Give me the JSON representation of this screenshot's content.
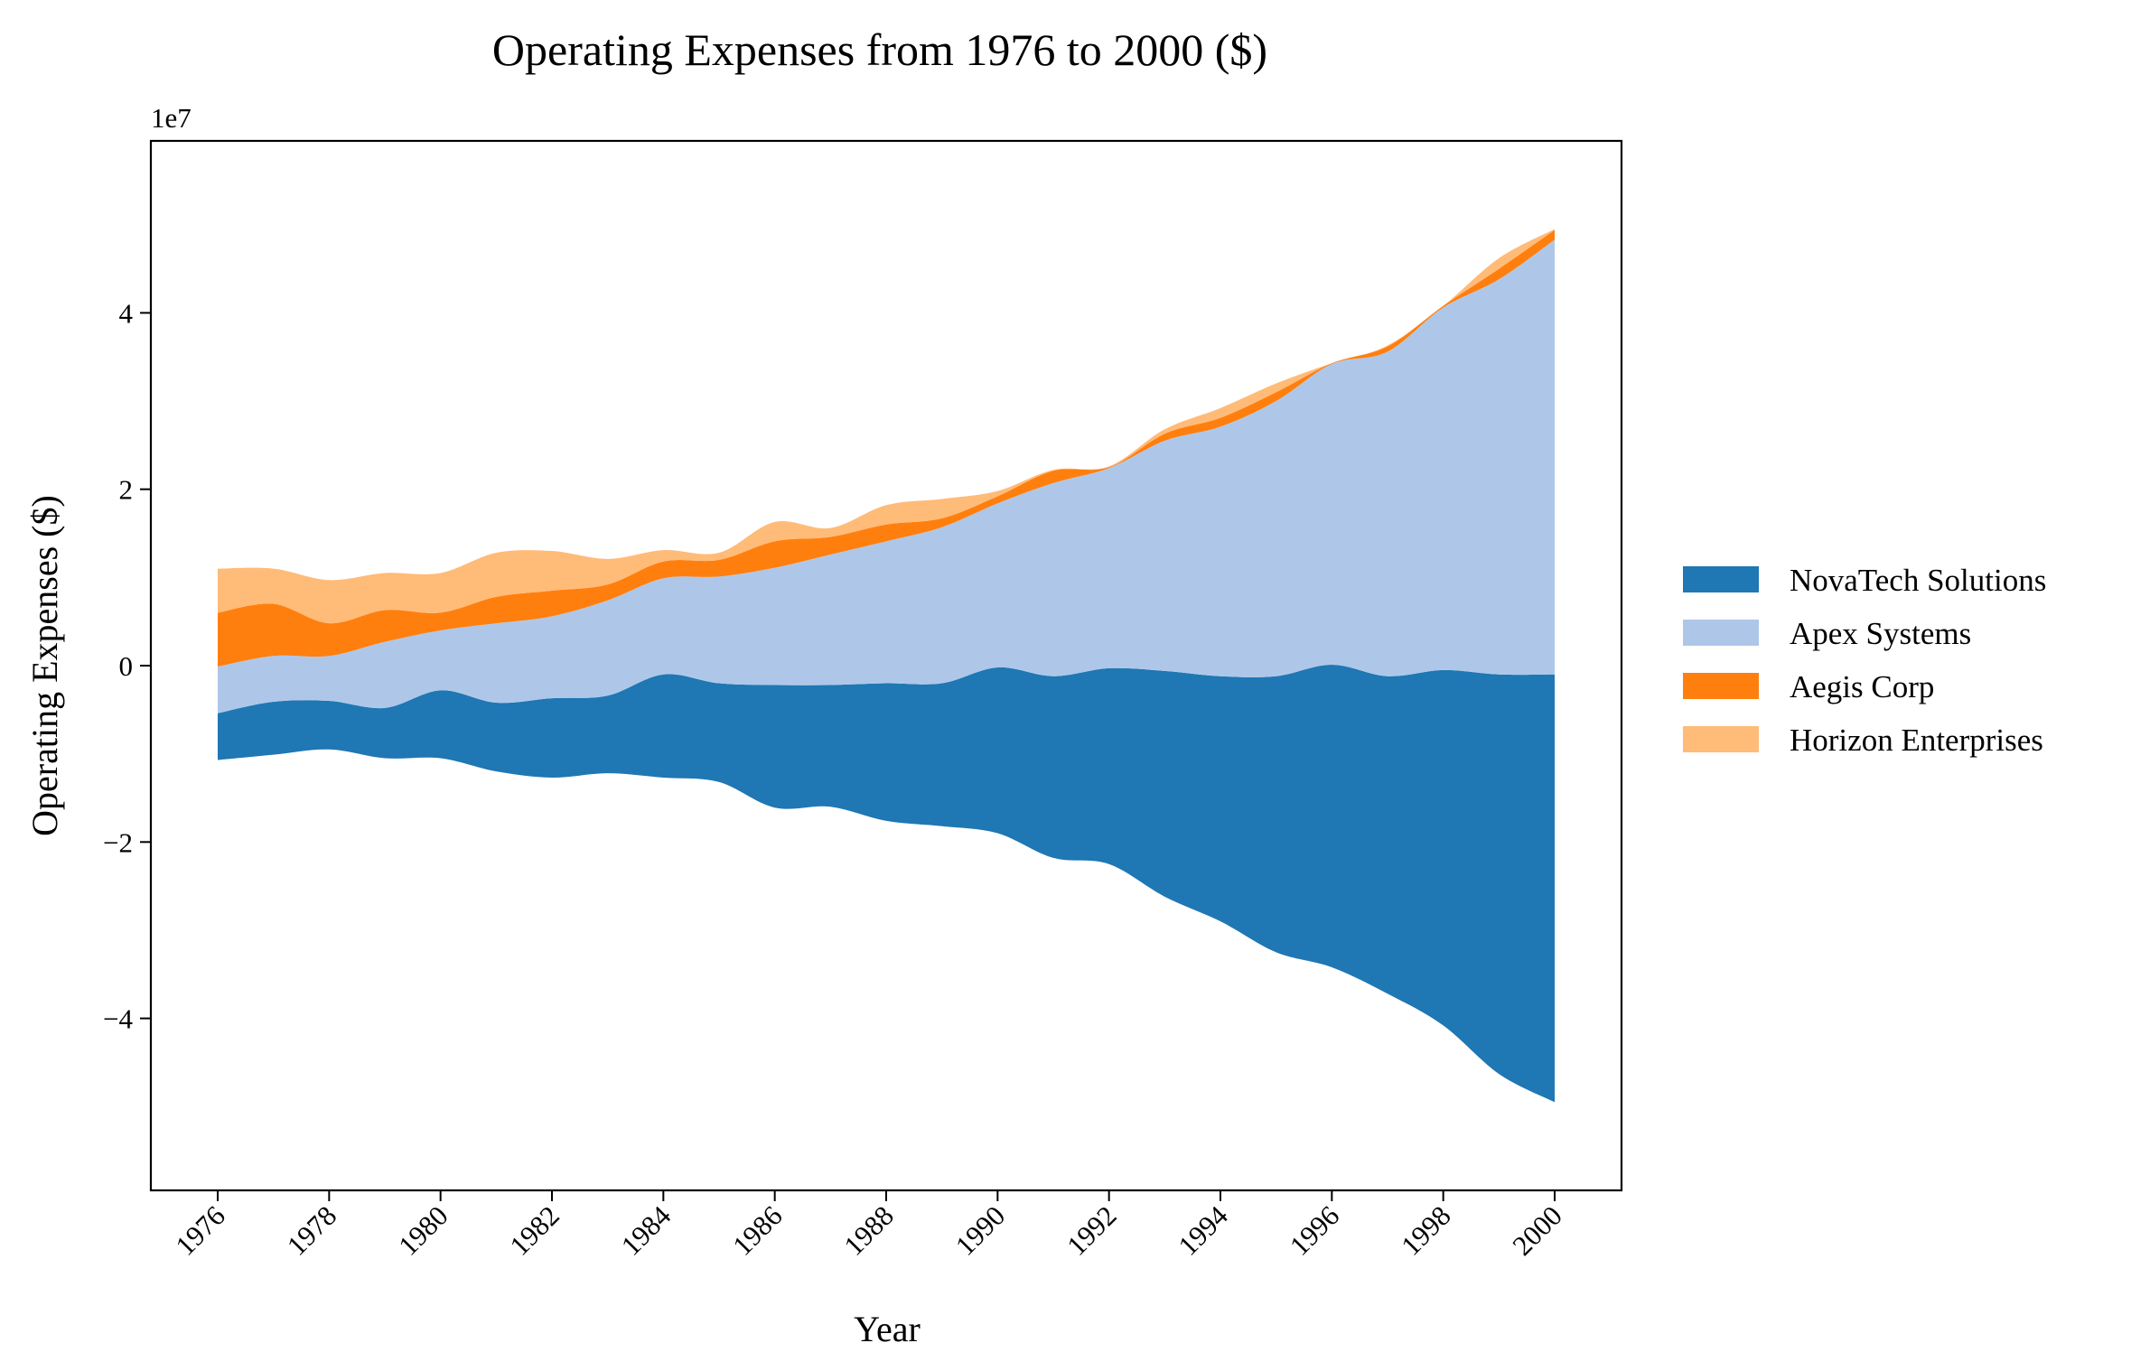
{
  "chart_data": {
    "type": "area",
    "subtype": "streamgraph",
    "title": "Operating Expenses from 1976 to 2000 ($)",
    "xlabel": "Year",
    "ylabel": "Operating Expenses ($)",
    "y_offset_label": "1e7",
    "y_scale_factor": 10000000,
    "xlim": [
      1974.8,
      2001.2
    ],
    "ylim": [
      -5.95,
      5.95
    ],
    "x_ticks": [
      1976,
      1978,
      1980,
      1982,
      1984,
      1986,
      1988,
      1990,
      1992,
      1994,
      1996,
      1998,
      2000
    ],
    "x_tick_labels": [
      "1976",
      "1978",
      "1980",
      "1982",
      "1984",
      "1986",
      "1988",
      "1990",
      "1992",
      "1994",
      "1996",
      "1998",
      "2000"
    ],
    "y_ticks": [
      -4,
      -2,
      0,
      2,
      4
    ],
    "y_tick_labels": [
      "−4",
      "−2",
      "0",
      "2",
      "4"
    ],
    "grid": false,
    "legend_position": "right",
    "x": [
      1976,
      1977,
      1978,
      1979,
      1980,
      1981,
      1982,
      1983,
      1984,
      1985,
      1986,
      1987,
      1988,
      1989,
      1990,
      1991,
      1992,
      1993,
      1994,
      1995,
      1996,
      1997,
      1998,
      1999,
      2000
    ],
    "baseline": [
      -1.07,
      -1.01,
      -0.95,
      -1.05,
      -1.05,
      -1.2,
      -1.27,
      -1.22,
      -1.27,
      -1.32,
      -1.61,
      -1.6,
      -1.76,
      -1.82,
      -1.9,
      -2.18,
      -2.25,
      -2.62,
      -2.9,
      -3.25,
      -3.42,
      -3.72,
      -4.08,
      -4.63,
      -4.95
    ],
    "series": [
      {
        "name": "NovaTech Solutions",
        "color": "#1f77b4",
        "values": [
          0.53,
          0.6,
          0.55,
          0.57,
          0.77,
          0.78,
          0.9,
          0.88,
          1.17,
          1.12,
          1.39,
          1.38,
          1.56,
          1.62,
          1.88,
          2.06,
          2.22,
          2.56,
          2.78,
          3.13,
          3.43,
          3.6,
          4.03,
          4.53,
          4.85
        ]
      },
      {
        "name": "Apex Systems",
        "color": "#aec7e8",
        "values": [
          0.53,
          0.52,
          0.51,
          0.75,
          0.68,
          0.9,
          0.93,
          1.08,
          1.09,
          1.21,
          1.33,
          1.48,
          1.61,
          1.77,
          1.86,
          2.19,
          2.27,
          2.61,
          2.83,
          3.12,
          3.41,
          3.68,
          4.11,
          4.48,
          4.93
        ]
      },
      {
        "name": "Aegis Corp",
        "color": "#ff7f0e",
        "values": [
          0.61,
          0.59,
          0.37,
          0.36,
          0.2,
          0.3,
          0.29,
          0.18,
          0.19,
          0.19,
          0.3,
          0.2,
          0.19,
          0.1,
          0.08,
          0.14,
          0.01,
          0.08,
          0.1,
          0.1,
          0.01,
          0.06,
          0.02,
          0.12,
          0.11
        ]
      },
      {
        "name": "Horizon Enterprises",
        "color": "#ffbb78",
        "values": [
          0.5,
          0.4,
          0.49,
          0.42,
          0.45,
          0.5,
          0.45,
          0.29,
          0.13,
          0.08,
          0.22,
          0.1,
          0.22,
          0.22,
          0.06,
          0.01,
          0.01,
          0.05,
          0.11,
          0.1,
          0.0,
          0.01,
          0.0,
          0.12,
          0.01
        ]
      }
    ]
  }
}
